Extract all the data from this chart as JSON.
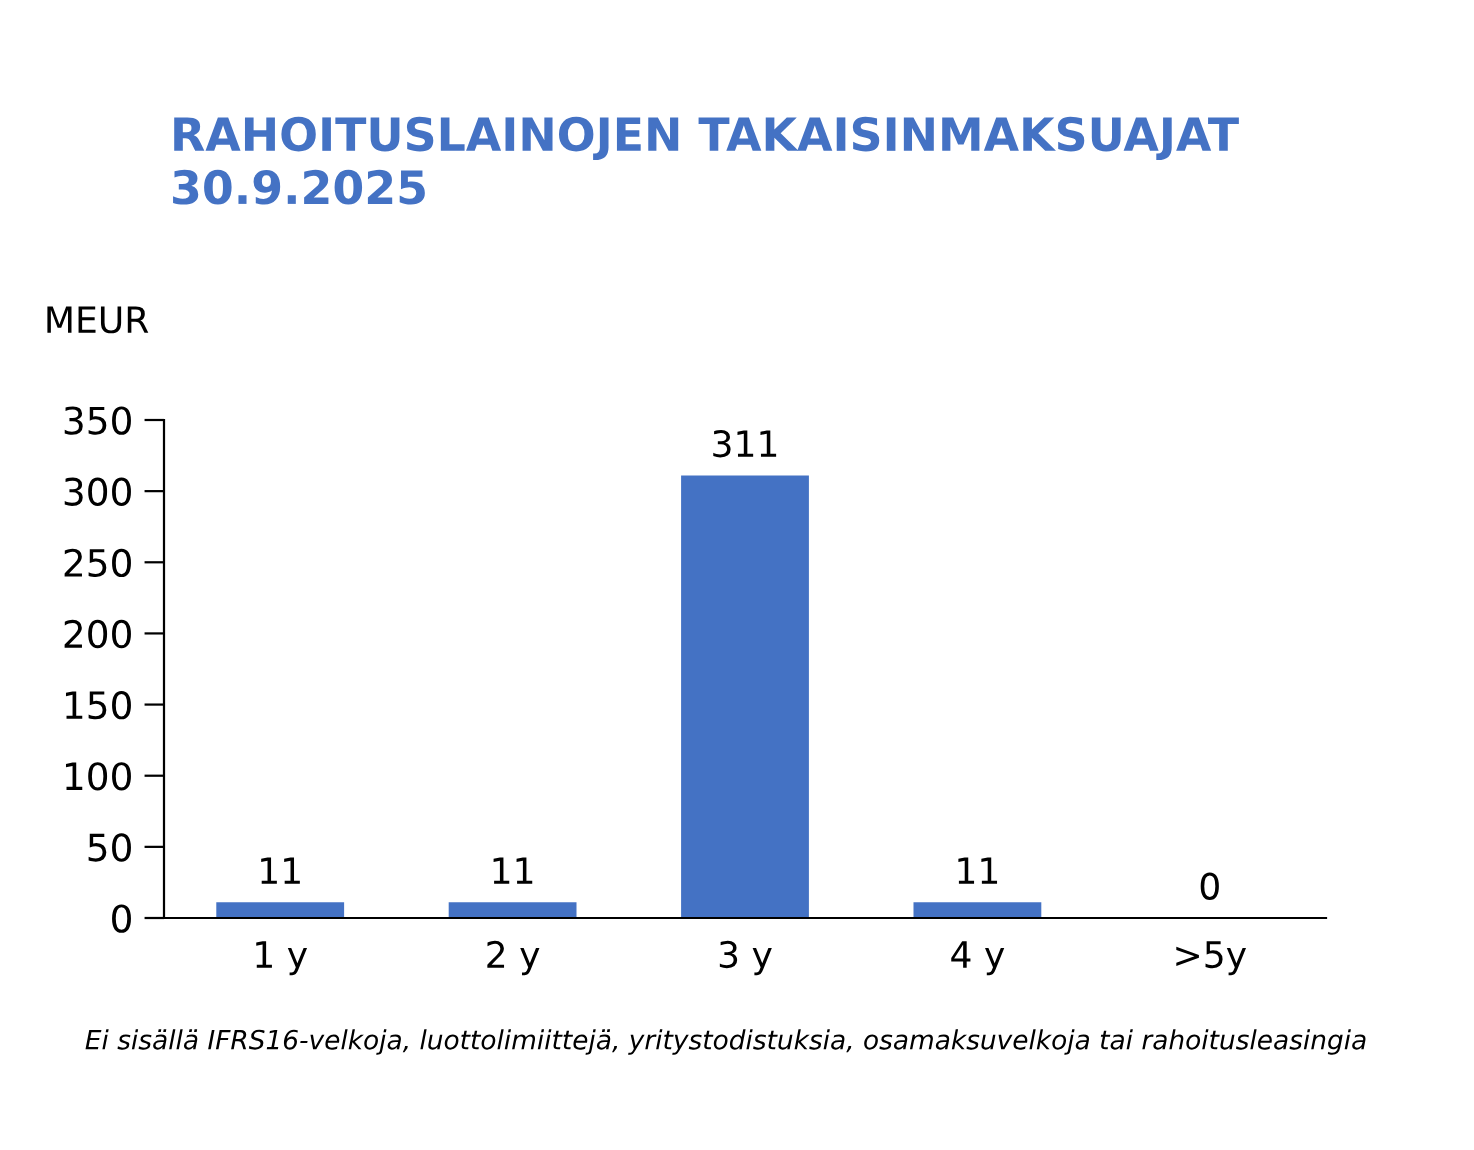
{
  "chart_data": {
    "type": "bar",
    "title": "RAHOITUSLAINOJEN TAKAISINMAKSUAJAT\n30.9.2025",
    "ylabel": "MEUR",
    "categories": [
      "1 y",
      "2 y",
      "3 y",
      "4 y",
      ">5y"
    ],
    "values": [
      11,
      11,
      311,
      11,
      0
    ],
    "color": "#4472c4",
    "ylim": [
      0,
      350
    ],
    "yticks": [
      0,
      50,
      100,
      150,
      200,
      250,
      300,
      350
    ],
    "grid": false,
    "data_labels": true,
    "legend": false,
    "annotations": [
      "Ei sisällä IFRS16-velkoja, luottolimiittejä, yritystodistuksia, osamaksuvelkoja tai rahoitusleasingia"
    ]
  }
}
